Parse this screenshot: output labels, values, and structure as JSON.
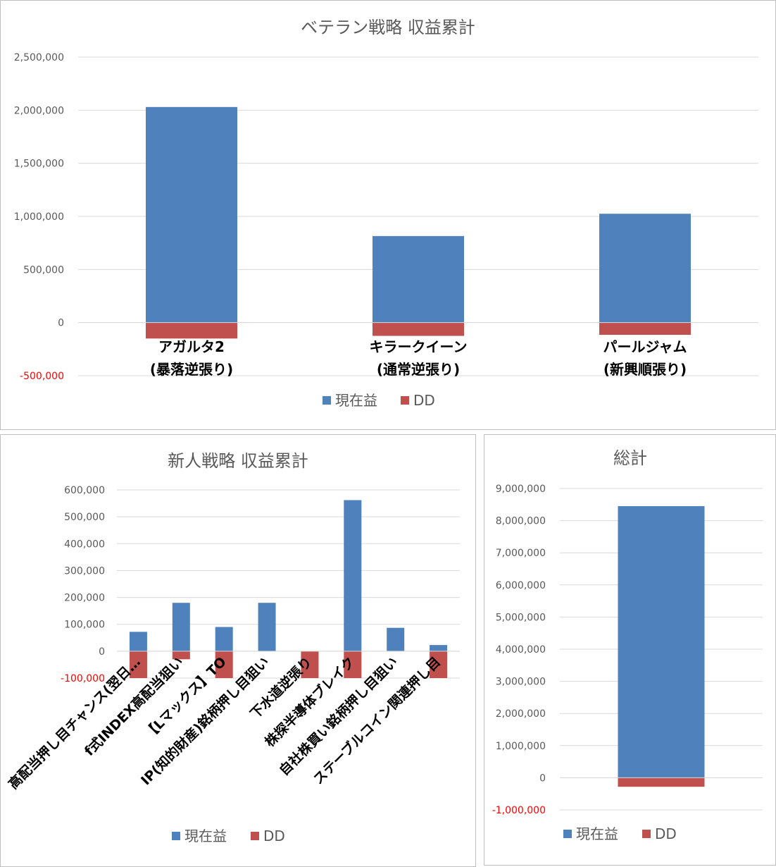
{
  "colors": {
    "profit": "#4f81bd",
    "dd": "#c0504d",
    "grid": "#d9d9d9",
    "negTick": "#ff0000"
  },
  "legend": {
    "profit": "現在益",
    "dd": "DD"
  },
  "chart_data": [
    {
      "id": "veteran",
      "type": "bar",
      "stacked": true,
      "title": "ベテラン戦略 収益累計",
      "categories": [
        [
          "アガルタ2",
          "(暴落逆張り)"
        ],
        [
          "キラークイーン",
          "(通常逆張り)"
        ],
        [
          "パールジャム",
          "(新興順張り)"
        ]
      ],
      "series": [
        {
          "name": "現在益",
          "values": [
            2030000,
            815000,
            1025000
          ]
        },
        {
          "name": "DD",
          "values": [
            -150000,
            -125000,
            -115000
          ]
        }
      ],
      "ylim": [
        -500000,
        2500000
      ],
      "yticks": [
        {
          "v": 2500000,
          "t": "2,500,000"
        },
        {
          "v": 2000000,
          "t": "2,000,000"
        },
        {
          "v": 1500000,
          "t": "1,500,000"
        },
        {
          "v": 1000000,
          "t": "1,000,000"
        },
        {
          "v": 500000,
          "t": "500,000"
        },
        {
          "v": 0,
          "t": "0"
        },
        {
          "v": -500000,
          "t": "-500,000"
        }
      ],
      "grid": true,
      "legend_position": "bottom"
    },
    {
      "id": "newbie",
      "type": "bar",
      "stacked": true,
      "title": "新人戦略 収益累計",
      "categories": [
        "高配当押し目チャンス(翌日…",
        "f式INDEX高配当狙い",
        "【Lマックス】TO",
        "IP(知的財産)銘柄押し目狙い",
        "下水道逆張り",
        "株探半導体ブレイク",
        "自社株買い銘柄押し目狙い",
        "ステーブルコイン関連押し目"
      ],
      "series": [
        {
          "name": "現在益",
          "values": [
            72000,
            180000,
            90000,
            180000,
            0,
            562000,
            87000,
            23000
          ]
        },
        {
          "name": "DD",
          "values": [
            -100000,
            -30000,
            -100000,
            0,
            -100000,
            -100000,
            0,
            -100000
          ]
        }
      ],
      "ylim": [
        -100000,
        600000
      ],
      "yticks": [
        {
          "v": 600000,
          "t": "600,000"
        },
        {
          "v": 500000,
          "t": "500,000"
        },
        {
          "v": 400000,
          "t": "400,000"
        },
        {
          "v": 300000,
          "t": "300,000"
        },
        {
          "v": 200000,
          "t": "200,000"
        },
        {
          "v": 100000,
          "t": "100,000"
        },
        {
          "v": 0,
          "t": "0"
        },
        {
          "v": -100000,
          "t": "-100,000"
        }
      ],
      "grid": true,
      "legend_position": "bottom"
    },
    {
      "id": "total",
      "type": "bar",
      "stacked": true,
      "title": "総計",
      "categories": [
        ""
      ],
      "series": [
        {
          "name": "現在益",
          "values": [
            8450000
          ]
        },
        {
          "name": "DD",
          "values": [
            -280000
          ]
        }
      ],
      "ylim": [
        -1000000,
        9000000
      ],
      "yticks": [
        {
          "v": 9000000,
          "t": "9,000,000"
        },
        {
          "v": 8000000,
          "t": "8,000,000"
        },
        {
          "v": 7000000,
          "t": "7,000,000"
        },
        {
          "v": 6000000,
          "t": "6,000,000"
        },
        {
          "v": 5000000,
          "t": "5,000,000"
        },
        {
          "v": 4000000,
          "t": "4,000,000"
        },
        {
          "v": 3000000,
          "t": "3,000,000"
        },
        {
          "v": 2000000,
          "t": "2,000,000"
        },
        {
          "v": 1000000,
          "t": "1,000,000"
        },
        {
          "v": 0,
          "t": "0"
        },
        {
          "v": -1000000,
          "t": "-1,000,000"
        }
      ],
      "grid": true,
      "legend_position": "bottom"
    }
  ]
}
